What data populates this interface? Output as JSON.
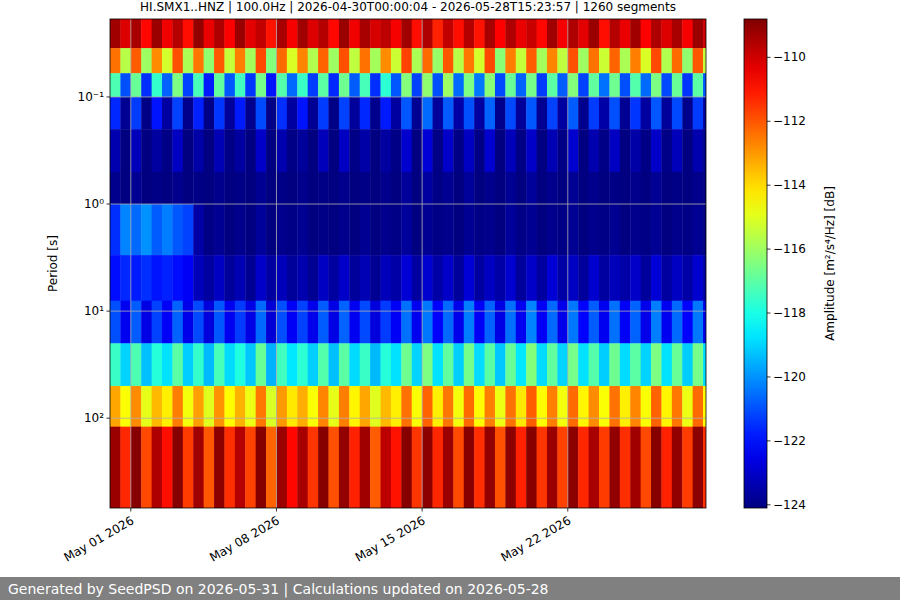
{
  "chart_data": {
    "type": "heatmap",
    "title": "HI.SMX1..HNZ | 100.0Hz | 2026-04-30T00:00:04 - 2026-05-28T15:23:57 | 1260 segments",
    "y_label": "Period [s]",
    "colorbar_label": "Amplitude [m²/s⁴/Hz] [dB]",
    "footer": "Generated by SeedPSD on 2026-05-31 | Calculations updated on 2026-05-28",
    "log": "y",
    "grid": true,
    "xlim": [
      "2026-04-30T00:00:04",
      "2026-05-28T15:23:57"
    ],
    "xticks": [
      {
        "value": "2026-05-01T00:00",
        "label": "May 01 2026"
      },
      {
        "value": "2026-05-08T00:00",
        "label": "May 08 2026"
      },
      {
        "value": "2026-05-15T00:00",
        "label": "May 15 2026"
      },
      {
        "value": "2026-05-22T00:00",
        "label": "May 22 2026"
      }
    ],
    "ylim": [
      0.0187,
      690
    ],
    "yticks": [
      {
        "value": 0.1,
        "label": "10⁻¹"
      },
      {
        "value": 1,
        "label": "10⁰"
      },
      {
        "value": 10,
        "label": "10¹"
      },
      {
        "value": 100,
        "label": "10²"
      }
    ],
    "colorbar_range": [
      -124.1,
      -108.8
    ],
    "colorbar_ticks": [
      {
        "value": -124,
        "label": "−124"
      },
      {
        "value": -122,
        "label": "−122"
      },
      {
        "value": -120,
        "label": "−120"
      },
      {
        "value": -118,
        "label": "−118"
      },
      {
        "value": -116,
        "label": "−116"
      },
      {
        "value": -114,
        "label": "−114"
      },
      {
        "value": -112,
        "label": "−112"
      },
      {
        "value": -110,
        "label": "−110"
      }
    ],
    "x_edges": [
      "2026-04-30T00:00:04",
      "2026-04-30T12:00",
      "2026-05-01T00:00",
      "2026-05-01T12:00",
      "2026-05-02T00:00",
      "2026-05-02T12:00",
      "2026-05-03T00:00",
      "2026-05-03T12:00",
      "2026-05-04T00:00",
      "2026-05-04T12:00",
      "2026-05-05T00:00",
      "2026-05-05T12:00",
      "2026-05-06T00:00",
      "2026-05-06T12:00",
      "2026-05-07T00:00",
      "2026-05-07T12:00",
      "2026-05-08T00:00",
      "2026-05-08T12:00",
      "2026-05-09T00:00",
      "2026-05-09T12:00",
      "2026-05-10T00:00",
      "2026-05-10T12:00",
      "2026-05-11T00:00",
      "2026-05-11T12:00",
      "2026-05-12T00:00",
      "2026-05-12T12:00",
      "2026-05-13T00:00",
      "2026-05-13T12:00",
      "2026-05-14T00:00",
      "2026-05-14T12:00",
      "2026-05-15T00:00",
      "2026-05-15T12:00",
      "2026-05-16T00:00",
      "2026-05-16T12:00",
      "2026-05-17T00:00",
      "2026-05-17T12:00",
      "2026-05-18T00:00",
      "2026-05-18T12:00",
      "2026-05-19T00:00",
      "2026-05-19T12:00",
      "2026-05-20T00:00",
      "2026-05-20T12:00",
      "2026-05-21T00:00",
      "2026-05-21T12:00",
      "2026-05-22T00:00",
      "2026-05-22T12:00",
      "2026-05-23T00:00",
      "2026-05-23T12:00",
      "2026-05-24T00:00",
      "2026-05-24T12:00",
      "2026-05-25T00:00",
      "2026-05-25T12:00",
      "2026-05-26T00:00",
      "2026-05-26T12:00",
      "2026-05-27T00:00",
      "2026-05-27T12:00",
      "2026-05-28T00:00",
      "2026-05-28T12:00",
      "2026-05-28T15:23:57"
    ],
    "y_edges": [
      0.0187,
      0.035,
      0.06,
      0.1,
      0.2,
      0.5,
      1,
      3,
      8,
      20,
      50,
      120,
      690
    ],
    "cells": [
      [
        -109.3,
        -110.2,
        -109.4,
        -110.8,
        -109.2,
        -110.5,
        -109.6,
        -110.9,
        -109.1,
        -110.4,
        -109.5,
        -110.7,
        -109.2,
        -110.3,
        -109.8,
        -111.0,
        -109.4,
        -110.6,
        -109.3,
        -110.2,
        -109.6,
        -110.8,
        -109.2,
        -110.5,
        -109.4,
        -110.1,
        -109.7,
        -110.6,
        -109.3,
        -110.9,
        -109.5,
        -111.2,
        -109.8,
        -110.9,
        -109.6,
        -111.0,
        -109.4,
        -110.7,
        -109.5,
        -110.4,
        -109.9,
        -110.8,
        -109.3,
        -110.6,
        -109.5,
        -110.3,
        -109.2,
        -110.9,
        -109.6,
        -110.4,
        -109.3,
        -110.7,
        -109.5,
        -110.2,
        -109.4,
        -110.6,
        -109.2,
        -110.0
      ],
      [
        -112.4,
        -115.6,
        -112.1,
        -116.0,
        -112.8,
        -115.2,
        -111.9,
        -115.8,
        -112.5,
        -116.2,
        -112.0,
        -115.4,
        -112.6,
        -115.9,
        -111.8,
        -116.4,
        -112.3,
        -115.1,
        -112.7,
        -115.7,
        -112.2,
        -116.0,
        -111.9,
        -115.5,
        -112.4,
        -115.9,
        -112.8,
        -115.3,
        -111.7,
        -115.8,
        -112.3,
        -116.1,
        -112.0,
        -115.6,
        -112.5,
        -115.2,
        -111.8,
        -116.3,
        -112.6,
        -115.4,
        -112.1,
        -115.9,
        -112.7,
        -115.5,
        -111.9,
        -116.0,
        -112.4,
        -115.3,
        -112.2,
        -115.8,
        -112.6,
        -115.1,
        -111.8,
        -115.7,
        -112.3,
        -116.2,
        -112.0,
        -115.4
      ],
      [
        -117.2,
        -121.0,
        -116.8,
        -121.5,
        -117.6,
        -120.7,
        -116.5,
        -121.2,
        -117.3,
        -121.8,
        -116.9,
        -120.9,
        -117.4,
        -121.4,
        -116.6,
        -121.9,
        -117.1,
        -120.6,
        -117.5,
        -121.3,
        -117.0,
        -121.6,
        -116.7,
        -120.8,
        -117.3,
        -121.5,
        -117.7,
        -120.9,
        -116.4,
        -121.2,
        -116.2,
        -121.0,
        -116.0,
        -120.6,
        -116.5,
        -120.4,
        -116.3,
        -121.1,
        -116.8,
        -120.7,
        -116.6,
        -121.3,
        -117.0,
        -120.8,
        -116.4,
        -121.2,
        -116.9,
        -120.5,
        -116.7,
        -121.0,
        -117.1,
        -120.6,
        -116.5,
        -121.1,
        -116.8,
        -121.4,
        -117.0,
        -120.9
      ],
      [
        -121.6,
        -123.8,
        -121.3,
        -124.0,
        -121.9,
        -123.6,
        -121.2,
        -123.9,
        -121.7,
        -124.0,
        -121.4,
        -123.7,
        -121.8,
        -123.9,
        -121.1,
        -124.0,
        -121.5,
        -123.6,
        -121.9,
        -123.8,
        -121.3,
        -124.0,
        -121.2,
        -123.7,
        -121.6,
        -123.9,
        -121.8,
        -123.6,
        -120.9,
        -123.8,
        -120.6,
        -123.7,
        -120.8,
        -123.5,
        -121.0,
        -123.6,
        -120.7,
        -123.9,
        -121.1,
        -123.7,
        -120.9,
        -123.8,
        -121.2,
        -123.6,
        -120.8,
        -123.9,
        -121.3,
        -123.5,
        -121.0,
        -123.8,
        -121.4,
        -123.6,
        -120.9,
        -123.7,
        -121.1,
        -123.9,
        -121.3,
        -123.7
      ],
      [
        -123.4,
        -124.1,
        -123.2,
        -124.1,
        -123.6,
        -124.0,
        -123.1,
        -124.1,
        -123.5,
        -124.1,
        -123.3,
        -124.0,
        -123.6,
        -124.1,
        -123.0,
        -124.1,
        -123.4,
        -124.0,
        -123.7,
        -124.1,
        -123.2,
        -124.1,
        -123.1,
        -124.0,
        -123.5,
        -124.1,
        -123.6,
        -124.0,
        -122.9,
        -124.1,
        -122.8,
        -124.0,
        -123.0,
        -124.0,
        -123.1,
        -124.0,
        -122.9,
        -124.1,
        -123.2,
        -124.0,
        -123.0,
        -124.1,
        -123.3,
        -124.0,
        -122.9,
        -124.1,
        -123.4,
        -124.0,
        -123.1,
        -124.1,
        -123.5,
        -124.0,
        -123.0,
        -124.0,
        -123.2,
        -124.1,
        -123.4,
        -124.0
      ],
      [
        -123.9,
        -124.1,
        -123.8,
        -124.1,
        -124.0,
        -124.1,
        -123.9,
        -124.1,
        -124.0,
        -124.1,
        -123.9,
        -124.1,
        -124.0,
        -124.1,
        -123.8,
        -124.1,
        -124.0,
        -124.1,
        -123.9,
        -124.1,
        -124.0,
        -124.1,
        -123.9,
        -124.1,
        -124.0,
        -124.1,
        -123.9,
        -124.1,
        -123.7,
        -124.1,
        -123.6,
        -124.0,
        -123.8,
        -124.1,
        -123.7,
        -124.1,
        -123.9,
        -124.1,
        -123.8,
        -124.1,
        -123.7,
        -124.1,
        -123.9,
        -124.1,
        -123.8,
        -124.1,
        -123.9,
        -124.1,
        -124.0,
        -124.1,
        -123.9,
        -124.1,
        -123.8,
        -124.1,
        -124.0,
        -124.1,
        -123.9,
        -124.1
      ],
      [
        -121.5,
        -120.2,
        -120.6,
        -120.0,
        -120.8,
        -120.3,
        -120.9,
        -121.2,
        -123.5,
        -124.0,
        -123.8,
        -124.1,
        -123.9,
        -124.1,
        -123.7,
        -124.1,
        -123.9,
        -124.0,
        -123.8,
        -124.1,
        -124.0,
        -124.1,
        -123.9,
        -124.1,
        -123.8,
        -124.1,
        -123.9,
        -124.0,
        -123.7,
        -124.1,
        -123.8,
        -124.0,
        -123.9,
        -124.1,
        -123.8,
        -124.0,
        -123.9,
        -124.1,
        -123.7,
        -124.0,
        -123.8,
        -124.1,
        -123.9,
        -124.0,
        -123.8,
        -124.1,
        -123.9,
        -124.0,
        -123.8,
        -124.1,
        -123.9,
        -124.0,
        -123.8,
        -124.1,
        -123.9,
        -124.0,
        -123.8,
        -124.1
      ],
      [
        -122.0,
        -121.6,
        -121.8,
        -121.5,
        -121.9,
        -121.7,
        -122.0,
        -122.3,
        -123.2,
        -123.6,
        -123.1,
        -123.7,
        -123.3,
        -123.8,
        -123.0,
        -123.6,
        -123.2,
        -123.7,
        -123.4,
        -123.8,
        -123.1,
        -123.6,
        -123.0,
        -123.7,
        -123.3,
        -123.8,
        -123.2,
        -123.5,
        -122.8,
        -123.6,
        -122.9,
        -123.5,
        -123.0,
        -123.7,
        -122.8,
        -123.6,
        -123.1,
        -123.5,
        -122.9,
        -123.7,
        -123.0,
        -123.6,
        -122.8,
        -123.5,
        -123.1,
        -123.7,
        -122.9,
        -123.6,
        -123.2,
        -123.5,
        -123.0,
        -123.7,
        -122.8,
        -123.6,
        -123.1,
        -123.5,
        -122.9,
        -123.6
      ],
      [
        -121.0,
        -122.4,
        -120.8,
        -122.6,
        -121.2,
        -122.3,
        -120.7,
        -122.5,
        -121.1,
        -122.7,
        -120.9,
        -122.4,
        -121.3,
        -122.6,
        -120.6,
        -122.8,
        -121.0,
        -122.3,
        -121.2,
        -122.5,
        -120.8,
        -122.6,
        -120.7,
        -122.4,
        -121.1,
        -122.7,
        -121.3,
        -122.3,
        -120.5,
        -122.4,
        -120.4,
        -122.2,
        -120.6,
        -122.5,
        -120.3,
        -122.3,
        -120.7,
        -122.6,
        -120.5,
        -122.4,
        -120.2,
        -122.3,
        -120.6,
        -122.5,
        -120.4,
        -122.2,
        -120.8,
        -122.4,
        -120.5,
        -122.3,
        -120.7,
        -122.5,
        -120.3,
        -122.4,
        -120.6,
        -122.2,
        -120.4,
        -122.5
      ],
      [
        -117.5,
        -119.0,
        -117.2,
        -119.3,
        -117.8,
        -118.8,
        -117.0,
        -119.1,
        -117.6,
        -119.4,
        -117.3,
        -118.9,
        -117.9,
        -119.2,
        -116.8,
        -119.5,
        -117.4,
        -118.7,
        -117.7,
        -119.1,
        -117.1,
        -119.3,
        -117.0,
        -118.9,
        -117.5,
        -119.4,
        -117.8,
        -118.8,
        -116.7,
        -119.0,
        -116.5,
        -118.8,
        -116.9,
        -119.1,
        -116.6,
        -118.9,
        -117.0,
        -119.2,
        -116.8,
        -118.7,
        -116.4,
        -118.9,
        -116.9,
        -119.0,
        -116.6,
        -118.8,
        -117.1,
        -119.1,
        -116.7,
        -118.9,
        -117.0,
        -119.0,
        -116.5,
        -118.8,
        -116.8,
        -119.1,
        -116.6,
        -118.9
      ],
      [
        -113.2,
        -114.6,
        -112.8,
        -114.9,
        -113.5,
        -114.3,
        -112.6,
        -114.7,
        -113.1,
        -115.0,
        -112.9,
        -114.5,
        -113.4,
        -114.8,
        -112.5,
        -115.1,
        -113.0,
        -114.2,
        -113.3,
        -114.6,
        -112.7,
        -114.9,
        -112.6,
        -114.4,
        -113.2,
        -115.0,
        -113.5,
        -114.3,
        -112.4,
        -114.6,
        -112.2,
        -114.3,
        -112.5,
        -114.7,
        -112.3,
        -114.5,
        -112.6,
        -114.8,
        -112.4,
        -114.2,
        -112.1,
        -114.5,
        -112.6,
        -114.7,
        -112.3,
        -114.4,
        -112.8,
        -114.6,
        -112.4,
        -114.3,
        -112.7,
        -114.6,
        -112.2,
        -114.4,
        -112.5,
        -114.8,
        -112.3,
        -114.5
      ],
      [
        -109.2,
        -111.3,
        -108.9,
        -111.8,
        -109.5,
        -110.9,
        -108.9,
        -111.6,
        -109.3,
        -112.0,
        -109.0,
        -111.4,
        -109.6,
        -111.7,
        -108.9,
        -112.2,
        -109.2,
        -110.8,
        -109.4,
        -111.5,
        -108.9,
        -111.9,
        -109.1,
        -111.2,
        -109.3,
        -112.1,
        -109.7,
        -111.0,
        -108.9,
        -111.5,
        -109.0,
        -111.3,
        -109.2,
        -111.8,
        -108.9,
        -111.4,
        -109.1,
        -111.9,
        -109.0,
        -111.2,
        -108.9,
        -111.5,
        -109.2,
        -111.7,
        -109.0,
        -111.3,
        -109.4,
        -111.6,
        -109.1,
        -111.4,
        -109.3,
        -111.8,
        -108.9,
        -111.2,
        -109.1,
        -111.6,
        -109.0,
        -111.4
      ]
    ]
  }
}
